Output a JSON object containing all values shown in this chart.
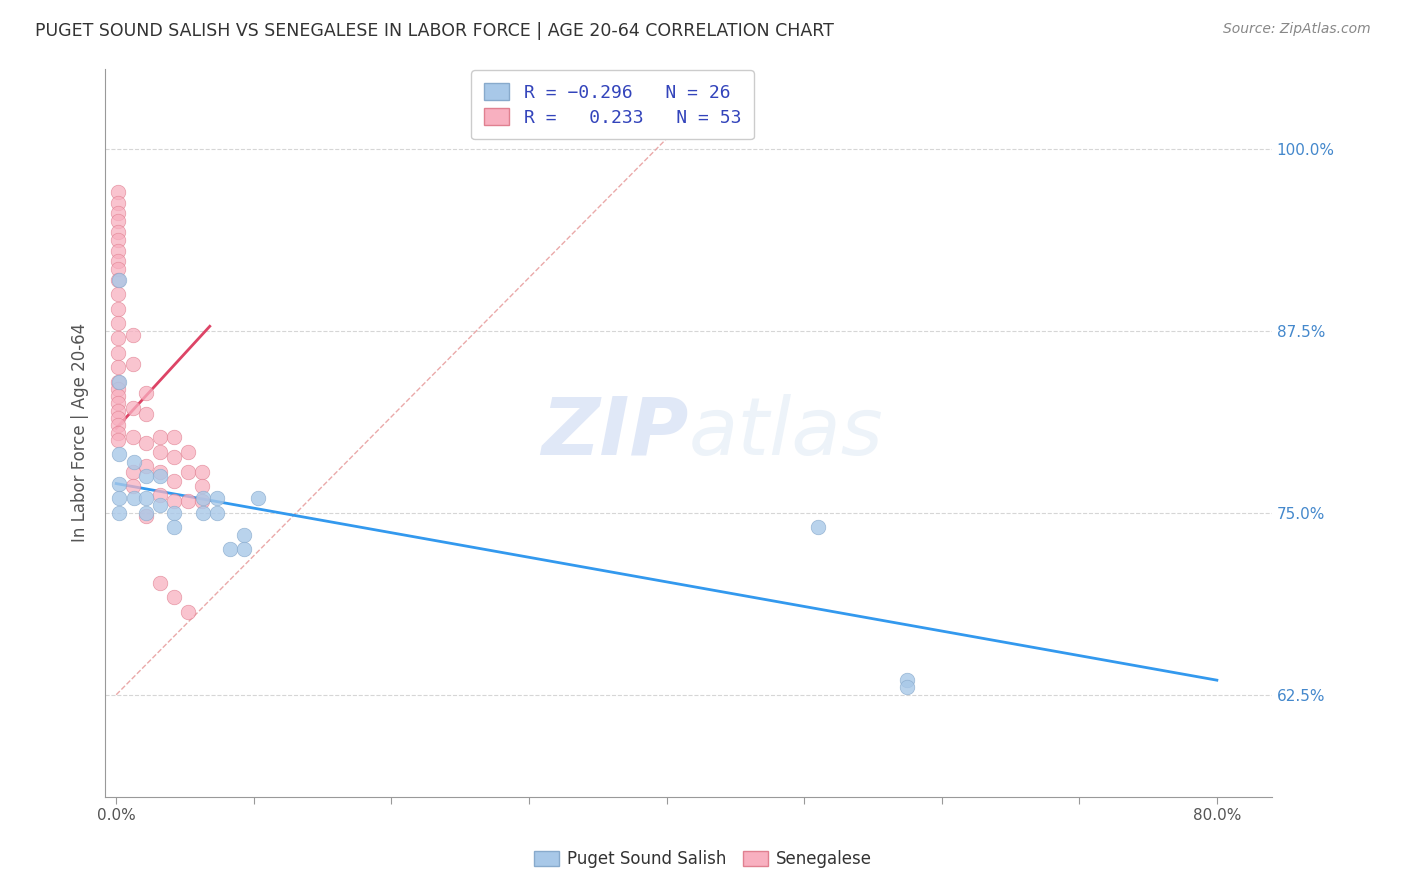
{
  "title": "PUGET SOUND SALISH VS SENEGALESE IN LABOR FORCE | AGE 20-64 CORRELATION CHART",
  "source": "Source: ZipAtlas.com",
  "ylabel": "In Labor Force | Age 20-64",
  "y_ticks": [
    0.625,
    0.75,
    0.875,
    1.0
  ],
  "y_tick_labels": [
    "62.5%",
    "75.0%",
    "87.5%",
    "100.0%"
  ],
  "xlim": [
    -0.008,
    0.84
  ],
  "ylim": [
    0.555,
    1.055
  ],
  "color_blue": "#a8c8e8",
  "color_pink": "#f8b0c0",
  "color_blue_line": "#3399ee",
  "color_pink_line": "#dd4466",
  "color_diag": "#e8a0a0",
  "watermark_zip": "ZIP",
  "watermark_atlas": "atlas",
  "bg_color": "#ffffff",
  "grid_color": "#cccccc",
  "title_color": "#333333",
  "source_color": "#888888",
  "legend_color": "#3344bb",
  "puget_points_x": [
    0.002,
    0.002,
    0.002,
    0.002,
    0.002,
    0.002,
    0.013,
    0.013,
    0.022,
    0.022,
    0.022,
    0.032,
    0.032,
    0.042,
    0.042,
    0.063,
    0.063,
    0.073,
    0.073,
    0.083,
    0.093,
    0.093,
    0.103,
    0.51,
    0.575,
    0.575
  ],
  "puget_points_y": [
    0.91,
    0.84,
    0.79,
    0.77,
    0.76,
    0.75,
    0.785,
    0.76,
    0.775,
    0.76,
    0.75,
    0.775,
    0.755,
    0.75,
    0.74,
    0.76,
    0.75,
    0.76,
    0.75,
    0.725,
    0.735,
    0.725,
    0.76,
    0.74,
    0.635,
    0.63
  ],
  "senegal_points_x": [
    0.001,
    0.001,
    0.001,
    0.001,
    0.001,
    0.001,
    0.001,
    0.001,
    0.001,
    0.001,
    0.001,
    0.001,
    0.001,
    0.001,
    0.001,
    0.001,
    0.001,
    0.001,
    0.001,
    0.001,
    0.001,
    0.001,
    0.001,
    0.001,
    0.001,
    0.012,
    0.012,
    0.012,
    0.012,
    0.012,
    0.012,
    0.022,
    0.022,
    0.022,
    0.022,
    0.022,
    0.032,
    0.032,
    0.032,
    0.032,
    0.032,
    0.042,
    0.042,
    0.042,
    0.042,
    0.042,
    0.052,
    0.052,
    0.052,
    0.052,
    0.062,
    0.062,
    0.062
  ],
  "senegal_points_y": [
    0.97,
    0.963,
    0.956,
    0.95,
    0.943,
    0.937,
    0.93,
    0.923,
    0.917,
    0.91,
    0.9,
    0.89,
    0.88,
    0.87,
    0.86,
    0.85,
    0.84,
    0.835,
    0.83,
    0.825,
    0.82,
    0.815,
    0.81,
    0.805,
    0.8,
    0.872,
    0.852,
    0.822,
    0.802,
    0.778,
    0.768,
    0.832,
    0.818,
    0.798,
    0.782,
    0.748,
    0.802,
    0.792,
    0.778,
    0.762,
    0.702,
    0.802,
    0.788,
    0.772,
    0.758,
    0.692,
    0.792,
    0.778,
    0.758,
    0.682,
    0.778,
    0.768,
    0.758
  ],
  "blue_line_x": [
    0.0,
    0.8
  ],
  "blue_line_y": [
    0.77,
    0.635
  ],
  "pink_line_x": [
    0.0,
    0.068
  ],
  "pink_line_y": [
    0.808,
    0.878
  ],
  "diag_line_x": [
    0.0,
    0.44
  ],
  "diag_line_y": [
    0.625,
    1.045
  ]
}
